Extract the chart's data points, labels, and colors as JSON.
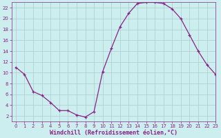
{
  "x": [
    0,
    1,
    2,
    3,
    4,
    5,
    6,
    7,
    8,
    9,
    10,
    11,
    12,
    13,
    14,
    15,
    16,
    17,
    18,
    19,
    20,
    21,
    22,
    23
  ],
  "y": [
    11,
    9.7,
    6.5,
    5.8,
    4.5,
    3.0,
    3.0,
    2.2,
    1.8,
    2.8,
    10.2,
    14.5,
    18.5,
    21.0,
    22.8,
    23.0,
    23.0,
    22.8,
    21.8,
    20.0,
    17.0,
    14.0,
    11.5,
    9.7
  ],
  "line_color": "#882288",
  "marker_color": "#882288",
  "bg_color": "#cceeee",
  "grid_color": "#aacccc",
  "axis_color": "#882288",
  "xlabel": "Windchill (Refroidissement éolien,°C)",
  "xlim": [
    -0.5,
    23
  ],
  "ylim": [
    1,
    23
  ],
  "xticks": [
    0,
    1,
    2,
    3,
    4,
    5,
    6,
    7,
    8,
    9,
    10,
    11,
    12,
    13,
    14,
    15,
    16,
    17,
    18,
    19,
    20,
    21,
    22,
    23
  ],
  "yticks": [
    2,
    4,
    6,
    8,
    10,
    12,
    14,
    16,
    18,
    20,
    22
  ],
  "tick_fontsize": 5.0,
  "xlabel_fontsize": 6.0,
  "linewidth": 0.9,
  "markersize": 2.5
}
